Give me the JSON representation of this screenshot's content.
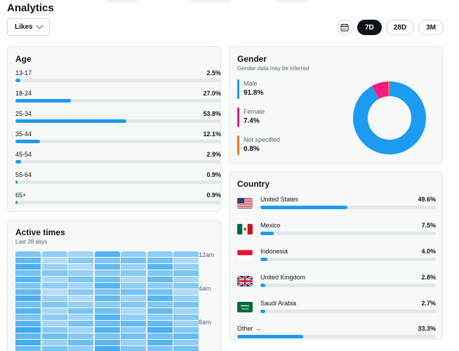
{
  "header": {
    "title": "Analytics",
    "metric": "Likes"
  },
  "range": {
    "options": [
      "7D",
      "28D",
      "3M"
    ],
    "active": "7D"
  },
  "age": {
    "title": "Age",
    "rows": [
      {
        "label": "13-17",
        "pct": "2.5%",
        "value": 2.5
      },
      {
        "label": "18-24",
        "pct": "27.0%",
        "value": 27.0
      },
      {
        "label": "25-34",
        "pct": "53.8%",
        "value": 53.8
      },
      {
        "label": "35-44",
        "pct": "12.1%",
        "value": 12.1
      },
      {
        "label": "45-54",
        "pct": "2.9%",
        "value": 2.9
      },
      {
        "label": "55-64",
        "pct": "0.9%",
        "value": 0.9
      },
      {
        "label": "65+",
        "pct": "0.9%",
        "value": 0.9
      }
    ]
  },
  "gender": {
    "title": "Gender",
    "subtitle": "Gender data may be inferred",
    "items": [
      {
        "label": "Male",
        "pct": "91.8%",
        "value": 91.8,
        "color": "#1d9bf0"
      },
      {
        "label": "Female",
        "pct": "7.4%",
        "value": 7.4,
        "color": "#f91880"
      },
      {
        "label": "Not specified",
        "pct": "0.8%",
        "value": 0.8,
        "color": "#ff7a00"
      }
    ]
  },
  "country": {
    "title": "Country",
    "rows": [
      {
        "label": "United States",
        "pct": "49.6%",
        "value": 49.6,
        "flag": "us-flag"
      },
      {
        "label": "Mexico",
        "pct": "7.5%",
        "value": 7.5,
        "flag": "mexico-flag"
      },
      {
        "label": "Indonesia",
        "pct": "4.0%",
        "value": 4.0,
        "flag": "indonesia-flag"
      },
      {
        "label": "United Kingdom",
        "pct": "2.8%",
        "value": 2.8,
        "flag": "uk-flag"
      },
      {
        "label": "Saudi Arabia",
        "pct": "2.7%",
        "value": 2.7,
        "flag": "saudi-flag"
      }
    ],
    "other": {
      "label": "Other →",
      "pct": "33.3%",
      "value": 33.3
    }
  },
  "active_times": {
    "title": "Active times",
    "subtitle": "Last 28 days",
    "y_labels": [
      "12am",
      "4am",
      "8am"
    ],
    "accent": "#1d9bf0"
  }
}
